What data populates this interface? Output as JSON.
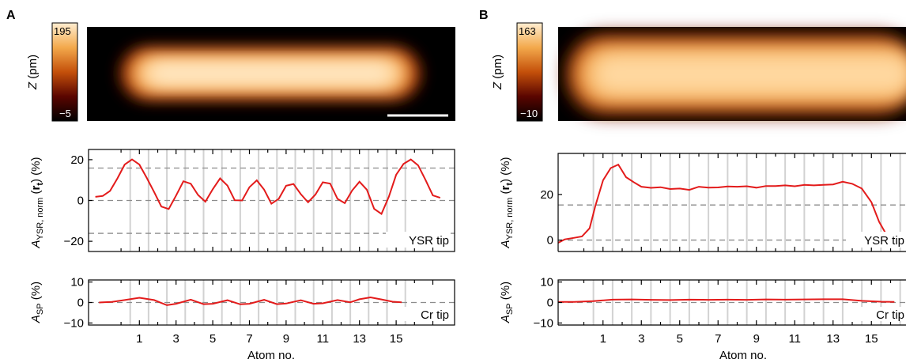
{
  "colors": {
    "curve": "#e31b1b",
    "axis": "#000000",
    "dashed": "#8c8c8c",
    "gridline": "#d2d2d2"
  },
  "chart_data": [
    {
      "panel": "A",
      "type": "line",
      "topo": {
        "colorbar_label": "Z (pm)",
        "colorbar_max": "195",
        "colorbar_min": "−5",
        "colormap": "afmhot",
        "scale_bar": true
      },
      "xlabel": "Atom no.",
      "xticks": [
        "1",
        "3",
        "5",
        "7",
        "9",
        "11",
        "13",
        "15"
      ],
      "ysr": {
        "ylabel": "A_YSR, norm (r_t) (%)",
        "ylim": [
          -25,
          25
        ],
        "yticks": [
          "20",
          "0",
          "−20"
        ],
        "dashed_lines": [
          15.9,
          0,
          -16.1
        ],
        "annotation": "YSR tip",
        "x": [
          -1.4,
          -1.0,
          -0.6,
          -0.2,
          0.2,
          0.6,
          1.0,
          1.4,
          1.8,
          2.2,
          2.6,
          3.0,
          3.4,
          3.8,
          4.2,
          4.6,
          5.0,
          5.4,
          5.8,
          6.2,
          6.6,
          7.0,
          7.4,
          7.8,
          8.2,
          8.6,
          9.0,
          9.4,
          9.8,
          10.2,
          10.6,
          11.0,
          11.4,
          11.8,
          12.2,
          12.6,
          13.0,
          13.4,
          13.8,
          14.2,
          14.6,
          15.0,
          15.4,
          15.8,
          16.2,
          16.6,
          17.0,
          17.4
        ],
        "values": [
          1.8,
          2.2,
          4.7,
          10.8,
          17.6,
          20.1,
          17.6,
          11.1,
          4.2,
          -3.0,
          -4.2,
          2.4,
          9.4,
          8.2,
          2.7,
          -0.6,
          5.5,
          10.8,
          7.3,
          0.1,
          0.0,
          6.5,
          9.9,
          5.3,
          -1.6,
          0.8,
          7.2,
          8.1,
          3.1,
          -0.9,
          2.9,
          8.9,
          8.3,
          0.8,
          -1.3,
          4.9,
          9.2,
          5.3,
          -4.1,
          -6.6,
          1.8,
          12.6,
          17.9,
          20.1,
          17.2,
          10.1,
          2.5,
          1.3
        ]
      },
      "sp": {
        "ylabel": "A_SP (%)",
        "ylim": [
          -11,
          11
        ],
        "yticks": [
          "10",
          "0",
          "−10"
        ],
        "dashed_lines": [
          0
        ],
        "annotation": "Cr tip",
        "x": [
          -1.2,
          -0.5,
          0.2,
          1.0,
          1.8,
          2.5,
          3.0,
          3.8,
          4.5,
          5.0,
          5.8,
          6.5,
          7.0,
          7.8,
          8.5,
          9.0,
          9.8,
          10.5,
          11.0,
          11.8,
          12.5,
          13.0,
          13.6,
          14.2,
          14.8,
          15.3
        ],
        "values": [
          0.0,
          0.3,
          1.2,
          2.3,
          1.2,
          -1.3,
          -0.6,
          1.4,
          -0.8,
          -0.6,
          1.1,
          -0.9,
          -0.6,
          1.3,
          -0.8,
          -0.5,
          1.1,
          -0.6,
          -0.4,
          1.2,
          0.1,
          1.6,
          2.5,
          1.5,
          0.4,
          0.1
        ]
      }
    },
    {
      "panel": "B",
      "type": "line",
      "topo": {
        "colorbar_label": "Z (pm)",
        "colorbar_max": "163",
        "colorbar_min": "−10",
        "colormap": "afmhot",
        "scale_bar": false
      },
      "xlabel": "Atom no.",
      "xticks": [
        "1",
        "3",
        "5",
        "7",
        "9",
        "11",
        "13",
        "15"
      ],
      "ysr": {
        "ylabel": "A_YSR, norm (r_t) (%)",
        "ylim": [
          -5,
          38
        ],
        "yticks": [
          "20",
          "0"
        ],
        "dashed_lines": [
          15.4,
          0
        ],
        "annotation": "YSR tip",
        "x": [
          -1.5,
          -1.0,
          -0.5,
          -0.1,
          0.3,
          0.6,
          1.0,
          1.4,
          1.8,
          2.2,
          2.6,
          3.0,
          3.5,
          4.0,
          4.5,
          5.0,
          5.5,
          6.0,
          6.5,
          7.0,
          7.5,
          8.0,
          8.5,
          9.0,
          9.5,
          10.0,
          10.5,
          11.0,
          11.5,
          12.0,
          12.5,
          13.0,
          13.5,
          14.0,
          14.5,
          15.0,
          15.4,
          15.8,
          16.2
        ],
        "values": [
          -1.2,
          0.3,
          1.0,
          1.6,
          5.2,
          14.9,
          26.2,
          31.6,
          33.1,
          27.6,
          25.4,
          23.4,
          22.9,
          23.2,
          22.4,
          22.6,
          22.0,
          23.4,
          23.0,
          23.1,
          23.5,
          23.4,
          23.6,
          23.0,
          23.7,
          23.7,
          24.0,
          23.6,
          24.2,
          24.0,
          24.2,
          24.4,
          25.6,
          24.7,
          22.6,
          16.6,
          8.0,
          2.1,
          -0.4
        ]
      },
      "sp": {
        "ylabel": "A_SP (%)",
        "ylim": [
          -11,
          11
        ],
        "yticks": [
          "10",
          "0",
          "−10"
        ],
        "dashed_lines": [
          0
        ],
        "annotation": "Cr tip",
        "x": [
          -1.5,
          -0.5,
          0.5,
          1.5,
          2.5,
          3.5,
          4.5,
          5.5,
          6.5,
          7.5,
          8.5,
          9.5,
          10.5,
          11.5,
          12.5,
          13.5,
          14.5,
          15.5,
          16.2
        ],
        "values": [
          0.3,
          0.3,
          0.7,
          1.4,
          1.5,
          1.3,
          1.2,
          1.4,
          1.3,
          1.4,
          1.3,
          1.5,
          1.4,
          1.5,
          1.6,
          1.6,
          0.8,
          0.4,
          0.3
        ]
      }
    }
  ]
}
